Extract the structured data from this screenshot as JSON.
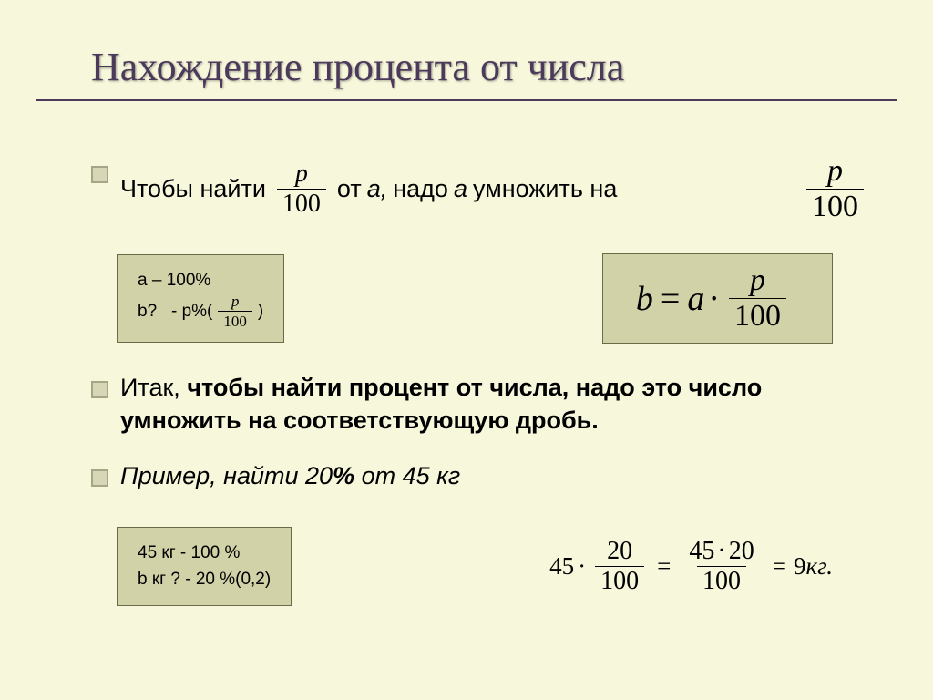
{
  "colors": {
    "background": "#f7f7dc",
    "title": "#4b3a5a",
    "rule": "#4b3a5a",
    "text": "#000000",
    "bullet_border": "#a6a687",
    "bullet_fill": "#d7d7b8",
    "box_bg": "#d2d2a9",
    "box_border": "#6b6b4a"
  },
  "title": "Нахождение процента от числа",
  "title_fontsize": 44,
  "body_fontsize": 27,
  "bullet1": {
    "t1": "Чтобы найти",
    "frac1_num": "p",
    "frac1_den": "100",
    "t2": "от",
    "a1": "a,",
    "t3": "надо",
    "a2": "а",
    "t4": "умножить на",
    "frac2_num": "p",
    "frac2_den": "100"
  },
  "box_left": {
    "l1": "a – 100%",
    "l2_a": "b?   - p%(",
    "frac_num": "p",
    "frac_den": "100",
    "l2_b": ")"
  },
  "formula": {
    "lhs": "b",
    "eq": "=",
    "rhs1": "a",
    "dot": "·",
    "frac_num": "p",
    "frac_den": "100"
  },
  "bullet2": {
    "t1": "Итак, ",
    "bold": "чтобы найти процент от числа, надо это число умножить на соответствующую дробь."
  },
  "bullet3": {
    "t1": "Пример, найти 20",
    "pct": "%",
    "t2": " от 45 кг"
  },
  "box_bottom": {
    "l1": "45 кг - 100 %",
    "l2": "b кг ? - 20 %(0,2)"
  },
  "example": {
    "n1": "45",
    "f1_num": "20",
    "f1_den": "100",
    "f2_num_a": "45",
    "f2_num_dot": "·",
    "f2_num_b": "20",
    "f2_den": "100",
    "res": "9",
    "unit": "кг."
  }
}
